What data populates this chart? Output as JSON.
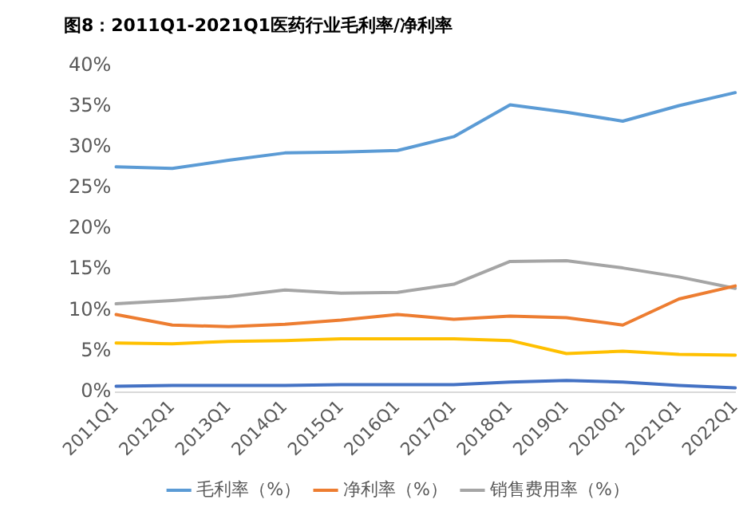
{
  "chart_data": {
    "type": "line",
    "title": "图8：2011Q1-2021Q1医药行业毛利率/净利率",
    "categories": [
      "2011Q1",
      "2012Q1",
      "2013Q1",
      "2014Q1",
      "2015Q1",
      "2016Q1",
      "2017Q1",
      "2018Q1",
      "2019Q1",
      "2020Q1",
      "2021Q1",
      "2022Q1"
    ],
    "series": [
      {
        "name": "毛利率（%）",
        "color": "#5b9bd5",
        "values": [
          27.6,
          27.4,
          28.4,
          29.3,
          29.4,
          29.6,
          31.3,
          35.2,
          34.3,
          33.2,
          35.1,
          36.7
        ]
      },
      {
        "name": "净利率（%）",
        "color": "#ed7d31",
        "values": [
          9.5,
          8.2,
          8.0,
          8.3,
          8.8,
          9.5,
          8.9,
          9.3,
          9.1,
          8.2,
          11.4,
          13.0
        ]
      },
      {
        "name": "销售费用率（%）",
        "color": "#a5a5a5",
        "values": [
          10.8,
          11.2,
          11.7,
          12.5,
          12.1,
          12.2,
          13.2,
          16.0,
          16.1,
          15.2,
          14.1,
          12.7
        ]
      },
      {
        "color": "#ffc000",
        "values": [
          6.0,
          5.9,
          6.2,
          6.3,
          6.5,
          6.5,
          6.5,
          6.3,
          4.7,
          5.0,
          4.6,
          4.5
        ]
      },
      {
        "color": "#4472c4",
        "values": [
          0.7,
          0.8,
          0.8,
          0.8,
          0.9,
          0.9,
          0.9,
          1.2,
          1.4,
          1.2,
          0.8,
          0.5
        ]
      }
    ],
    "ylim": [
      0,
      40
    ],
    "yticks": [
      {
        "value": 0,
        "label": "0%"
      },
      {
        "value": 5,
        "label": "5%"
      },
      {
        "value": 10,
        "label": "10%"
      },
      {
        "value": 15,
        "label": "15%"
      },
      {
        "value": 20,
        "label": "20%"
      },
      {
        "value": 25,
        "label": "25%"
      },
      {
        "value": 30,
        "label": "30%"
      },
      {
        "value": 35,
        "label": "35%"
      },
      {
        "value": 40,
        "label": "40%"
      }
    ],
    "grid": false,
    "legend": "bottom",
    "marker": "none",
    "line_style": "solid"
  }
}
